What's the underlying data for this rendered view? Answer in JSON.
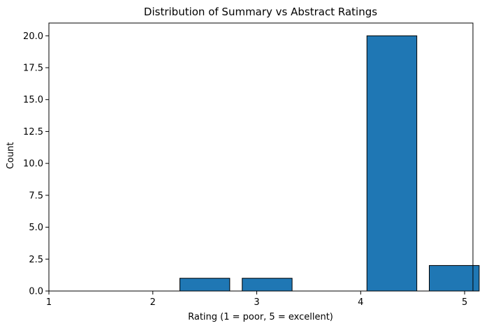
{
  "chart_data": {
    "type": "bar",
    "title": "Distribution of Summary vs Abstract Ratings",
    "xlabel": "Rating (1 = poor, 5 = excellent)",
    "ylabel": "Count",
    "xlim": [
      1,
      5.08
    ],
    "ylim": [
      0,
      21
    ],
    "x_ticks": [
      1,
      2,
      3,
      4,
      5
    ],
    "y_ticks": [
      0.0,
      2.5,
      5.0,
      7.5,
      10.0,
      12.5,
      15.0,
      17.5,
      20.0
    ],
    "bins": [
      {
        "start": 1.0,
        "end": 1.6,
        "value": 0
      },
      {
        "start": 1.6,
        "end": 2.2,
        "value": 0
      },
      {
        "start": 2.2,
        "end": 2.8,
        "value": 1
      },
      {
        "start": 2.8,
        "end": 3.4,
        "value": 1
      },
      {
        "start": 3.4,
        "end": 4.0,
        "value": 0
      },
      {
        "start": 4.0,
        "end": 4.6,
        "value": 20
      },
      {
        "start": 4.6,
        "end": 5.2,
        "value": 2
      }
    ],
    "bar_fill_fraction": 0.8,
    "bar_color": "#1f77b4",
    "edge_color": "#000000",
    "grid": false,
    "legend": null
  }
}
